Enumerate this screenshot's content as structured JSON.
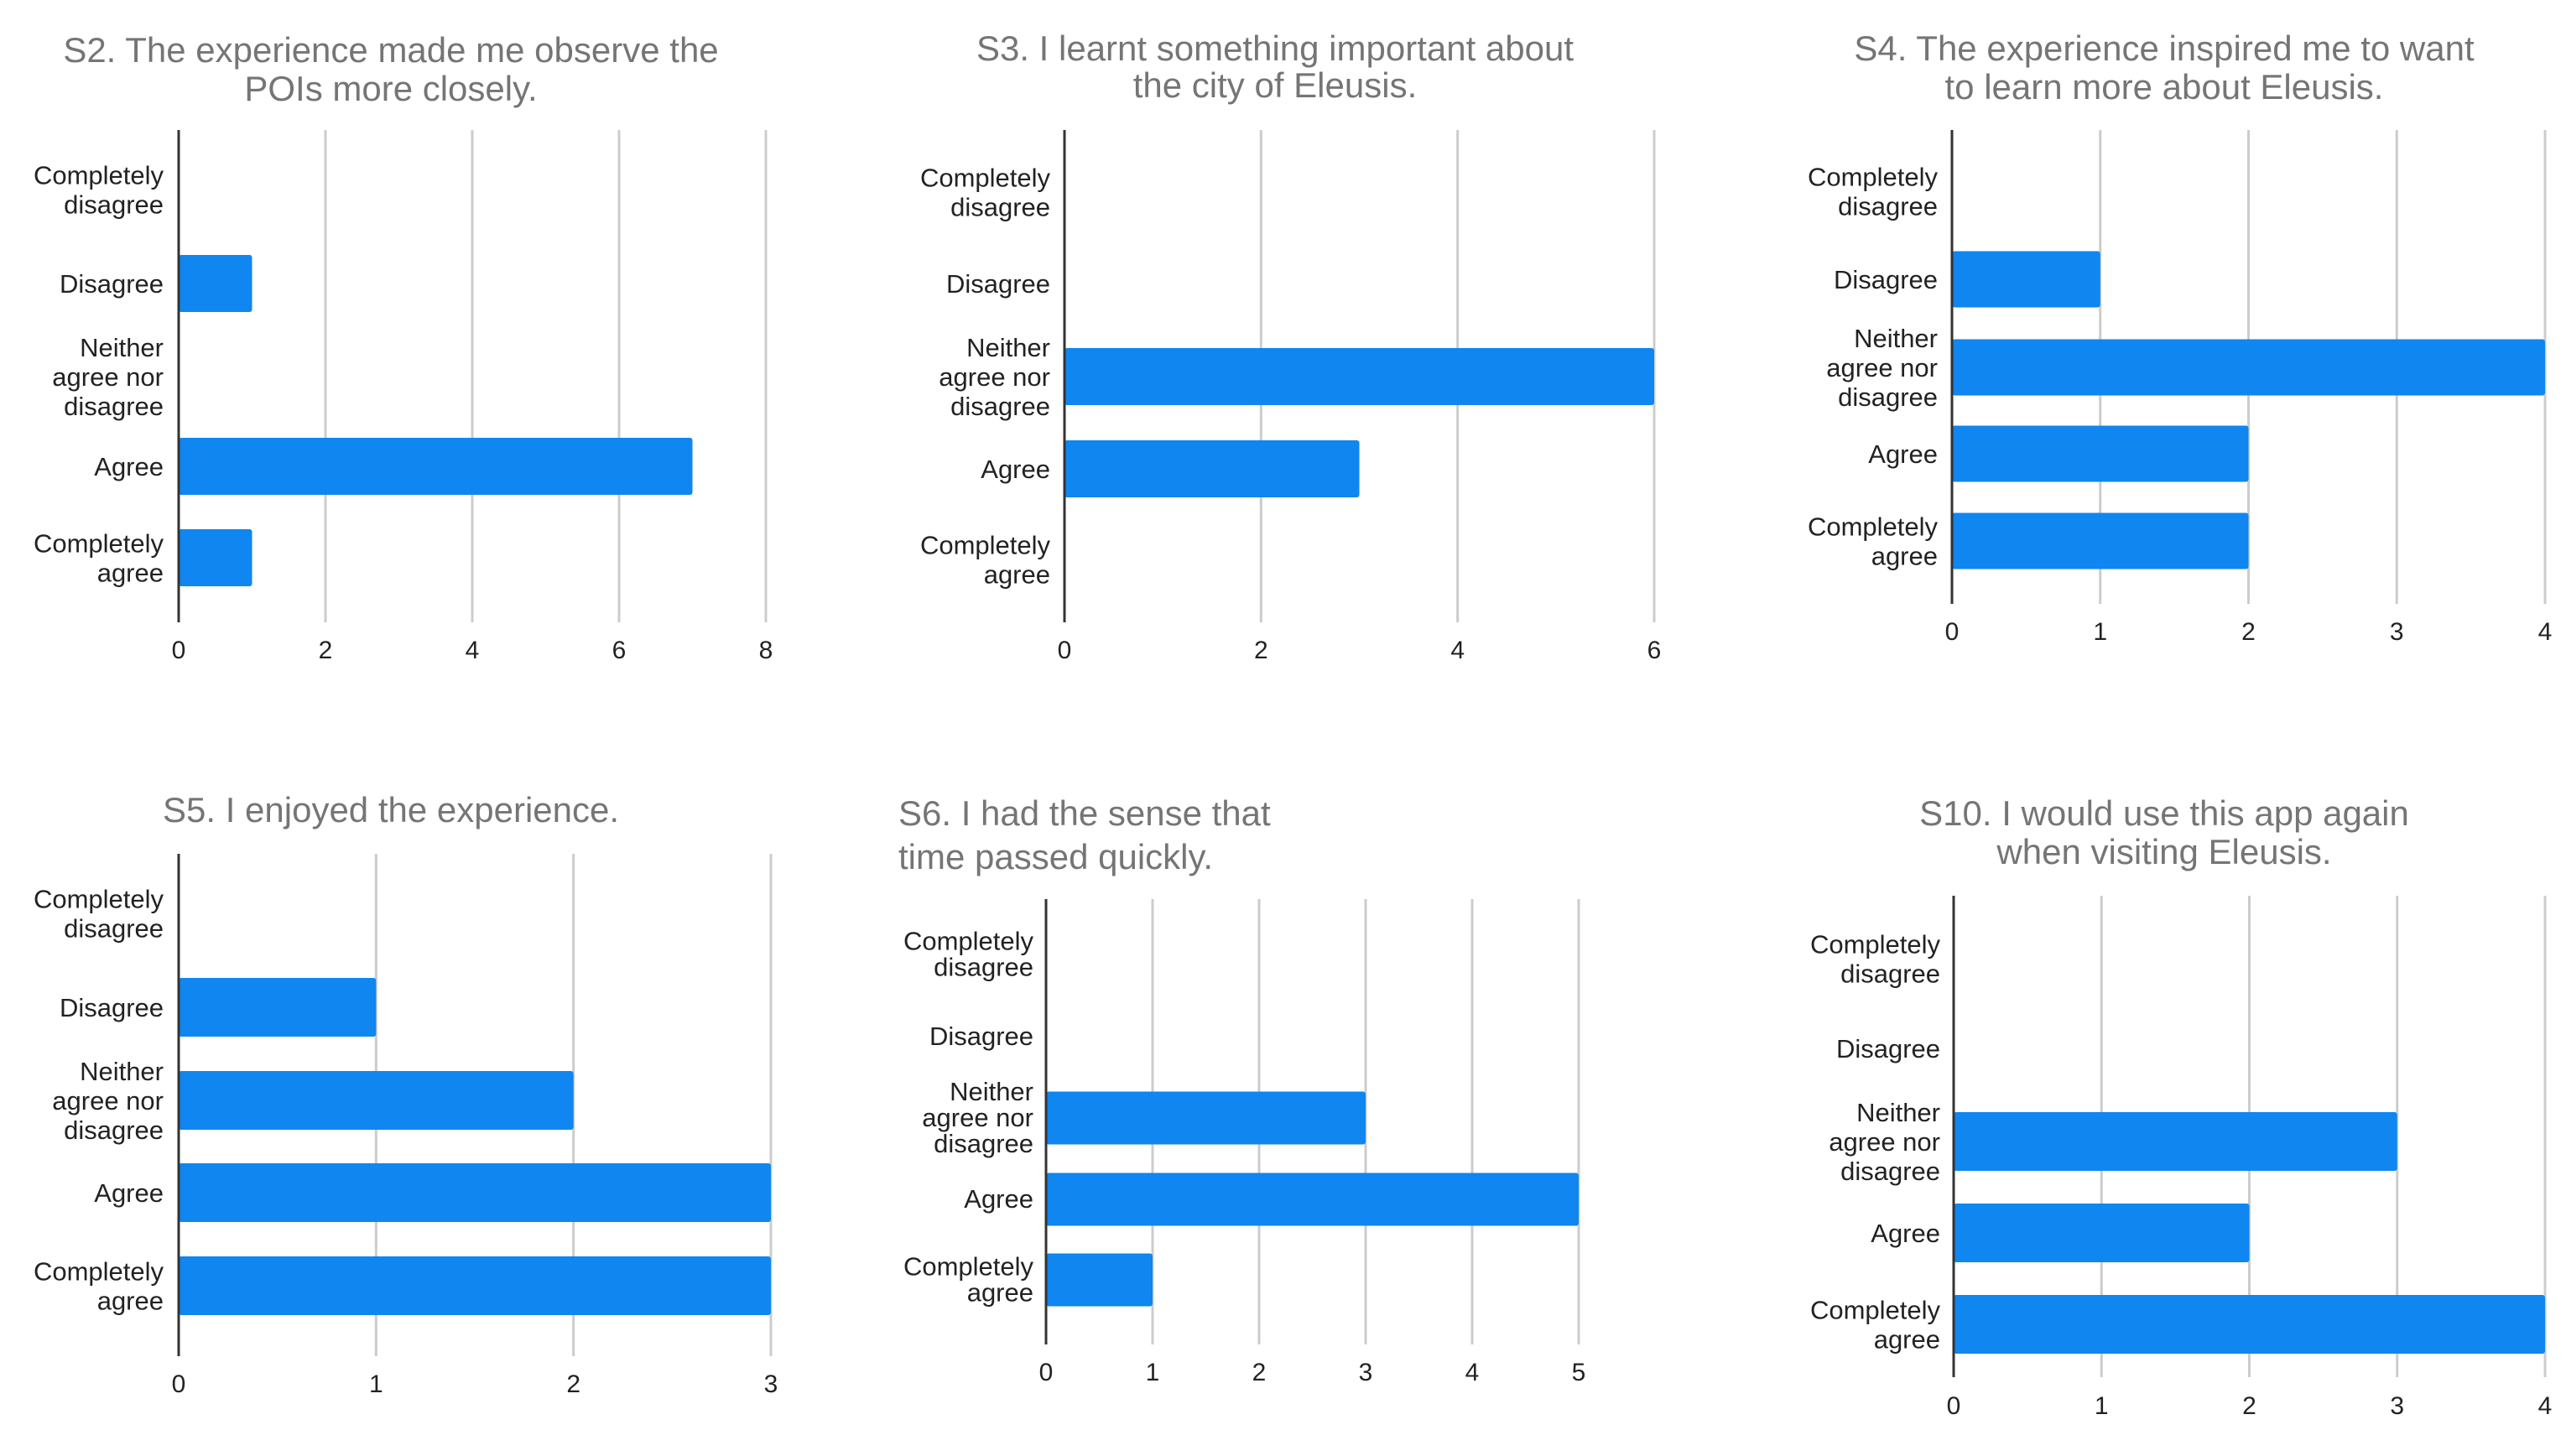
{
  "chart_data": [
    {
      "type": "bar",
      "orientation": "horizontal",
      "title": "S2. The experience made me observe the POIs more closely.",
      "categories": [
        "Completely disagree",
        "Disagree",
        "Neither agree nor disagree",
        "Agree",
        "Completely agree"
      ],
      "values": [
        0,
        1,
        0,
        7,
        1
      ],
      "xlim": [
        0,
        8
      ],
      "xticks": [
        0,
        2,
        4,
        6,
        8
      ]
    },
    {
      "type": "bar",
      "orientation": "horizontal",
      "title": "S3. I learnt something important about the city of Eleusis.",
      "categories": [
        "Completely disagree",
        "Disagree",
        "Neither agree nor disagree",
        "Agree",
        "Completely agree"
      ],
      "values": [
        0,
        0,
        6,
        3,
        0
      ],
      "xlim": [
        0,
        6
      ],
      "xticks": [
        0,
        2,
        4,
        6
      ]
    },
    {
      "type": "bar",
      "orientation": "horizontal",
      "title": "S4. The experience inspired me to want to learn more about Eleusis.",
      "categories": [
        "Completely disagree",
        "Disagree",
        "Neither agree nor disagree",
        "Agree",
        "Completely agree"
      ],
      "values": [
        0,
        1,
        4,
        2,
        2
      ],
      "xlim": [
        0,
        4
      ],
      "xticks": [
        0,
        1,
        2,
        3,
        4
      ]
    },
    {
      "type": "bar",
      "orientation": "horizontal",
      "title": "S5. I enjoyed the experience.",
      "categories": [
        "Completely disagree",
        "Disagree",
        "Neither agree nor disagree",
        "Agree",
        "Completely agree"
      ],
      "values": [
        0,
        1,
        2,
        3,
        3
      ],
      "xlim": [
        0,
        3
      ],
      "xticks": [
        0,
        1,
        2,
        3
      ]
    },
    {
      "type": "bar",
      "orientation": "horizontal",
      "title": "S6. I had the sense that time passed quickly.",
      "categories": [
        "Completely disagree",
        "Disagree",
        "Neither agree nor disagree",
        "Agree",
        "Completely agree"
      ],
      "values": [
        0,
        0,
        3,
        5,
        1
      ],
      "xlim": [
        0,
        5
      ],
      "xticks": [
        0,
        1,
        2,
        3,
        4,
        5
      ]
    },
    {
      "type": "bar",
      "orientation": "horizontal",
      "title": "S10. I would use this app again when visiting Eleusis.",
      "categories": [
        "Completely disagree",
        "Disagree",
        "Neither agree nor disagree",
        "Agree",
        "Completely agree"
      ],
      "values": [
        0,
        0,
        3,
        2,
        4
      ],
      "xlim": [
        0,
        4
      ],
      "xticks": [
        0,
        1,
        2,
        3,
        4
      ]
    }
  ],
  "colors": {
    "bar": "#0f86f0",
    "title": "#757575",
    "grid": "#cccccc",
    "axis": "#333333"
  }
}
